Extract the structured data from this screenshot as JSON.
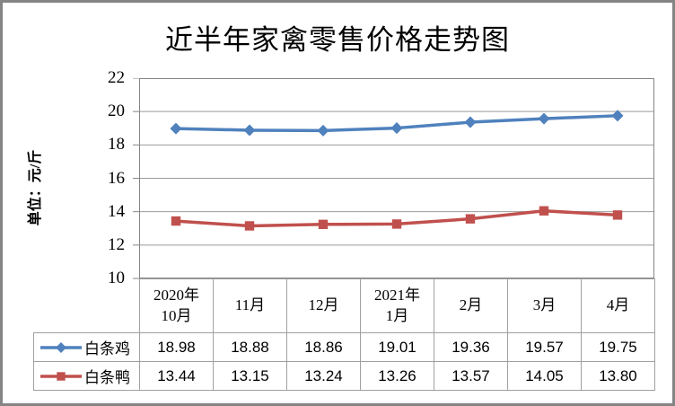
{
  "chart_data": {
    "type": "line",
    "title": "近半年家禽零售价格走势图",
    "ylabel": "单位：元/斤",
    "xlabel": "",
    "categories": [
      "2020年\n10月",
      "11月",
      "12月",
      "2021年\n1月",
      "2月",
      "3月",
      "4月"
    ],
    "series": [
      {
        "name": "白条鸡",
        "marker": "diamond",
        "color": "#4F81BD",
        "values": [
          18.98,
          18.88,
          18.86,
          19.01,
          19.36,
          19.57,
          19.75
        ]
      },
      {
        "name": "白条鸭",
        "marker": "square",
        "color": "#C0504D",
        "values": [
          13.44,
          13.15,
          13.24,
          13.26,
          13.57,
          14.05,
          13.8
        ]
      }
    ],
    "ylim": [
      10,
      22
    ],
    "yticks": [
      22,
      20,
      18,
      16,
      14,
      12,
      10
    ],
    "grid": true,
    "legend_position": "left-of-data-table",
    "value_decimals": 2
  },
  "colors": {
    "outer_frame": "#848484",
    "plot_border": "#868686",
    "gridline": "#9b9b9b",
    "table_border": "#a0a0a0",
    "text": "#000000"
  }
}
